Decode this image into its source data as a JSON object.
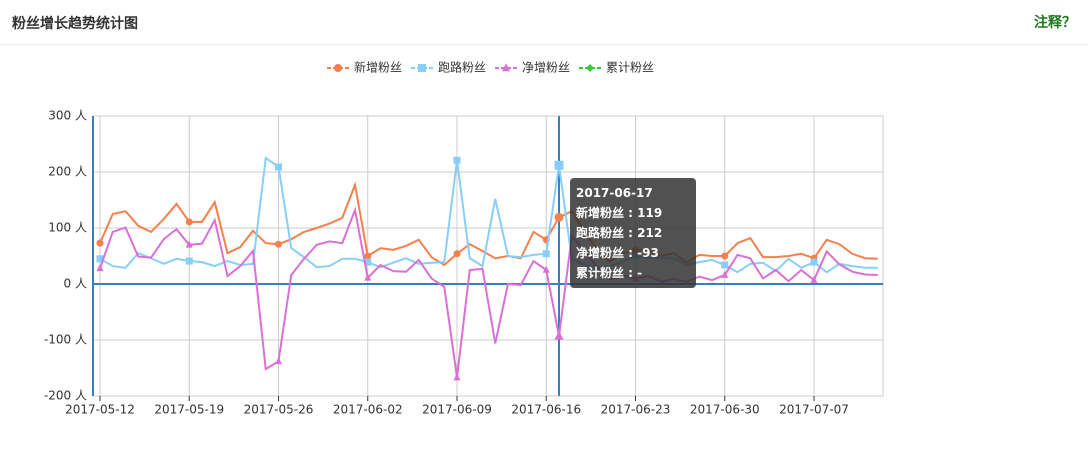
{
  "header": {
    "title": "粉丝增长趋势统计图",
    "note": "注释？"
  },
  "chart_data": {
    "type": "line",
    "categories": [
      "2017-05-12",
      null,
      null,
      null,
      null,
      null,
      null,
      "2017-05-19",
      null,
      null,
      null,
      null,
      null,
      null,
      "2017-05-26",
      null,
      null,
      null,
      null,
      null,
      null,
      "2017-06-02",
      null,
      null,
      null,
      null,
      null,
      null,
      "2017-06-09",
      null,
      null,
      null,
      null,
      null,
      null,
      "2017-06-16",
      null,
      null,
      null,
      null,
      null,
      null,
      "2017-06-23",
      null,
      null,
      null,
      null,
      null,
      null,
      "2017-06-30",
      null,
      null,
      null,
      null,
      null,
      null,
      "2017-07-07",
      null,
      null,
      null,
      null,
      null
    ],
    "series": [
      {
        "name": "新增粉丝",
        "color": "#f5804d",
        "marker": "circle",
        "values": [
          73,
          125,
          130,
          104,
          93,
          116,
          143,
          111,
          111,
          146,
          55,
          66,
          95,
          73,
          71,
          80,
          93,
          100,
          108,
          118,
          177,
          50,
          64,
          61,
          68,
          79,
          48,
          34,
          54,
          71,
          59,
          46,
          50,
          46,
          93,
          79,
          119,
          130,
          95,
          60,
          40,
          55,
          60,
          60,
          50,
          55,
          38,
          52,
          50,
          50,
          73,
          82,
          48,
          48,
          50,
          54,
          46,
          79,
          71,
          54,
          46,
          45
        ]
      },
      {
        "name": "跑路粉丝",
        "color": "#87cefa",
        "marker": "square",
        "values": [
          45,
          32,
          29,
          55,
          46,
          36,
          45,
          41,
          39,
          32,
          41,
          34,
          36,
          225,
          209,
          64,
          48,
          30,
          32,
          45,
          45,
          39,
          30,
          38,
          46,
          36,
          38,
          39,
          221,
          46,
          32,
          152,
          50,
          48,
          52,
          54,
          212,
          45,
          35,
          30,
          32,
          40,
          50,
          46,
          46,
          46,
          34,
          39,
          43,
          34,
          21,
          36,
          38,
          23,
          45,
          29,
          39,
          21,
          36,
          32,
          29,
          29
        ]
      },
      {
        "name": "净增粉丝",
        "color": "#da70d6",
        "marker": "triangle",
        "values": [
          28,
          93,
          101,
          49,
          47,
          80,
          98,
          70,
          72,
          114,
          14,
          32,
          59,
          -152,
          -138,
          16,
          45,
          70,
          76,
          73,
          132,
          11,
          34,
          23,
          22,
          43,
          10,
          -5,
          -167,
          25,
          27,
          -106,
          0,
          -2,
          41,
          25,
          -93,
          85,
          60,
          30,
          8,
          15,
          10,
          14,
          4,
          9,
          4,
          13,
          7,
          16,
          52,
          46,
          10,
          25,
          5,
          25,
          7,
          58,
          35,
          22,
          17,
          16
        ]
      },
      {
        "name": "累计粉丝",
        "color": "#32cd32",
        "marker": "diamond",
        "values": [
          null,
          null,
          null,
          null,
          null,
          null,
          null,
          null,
          null,
          null,
          null,
          null,
          null,
          null,
          null,
          null,
          null,
          null,
          null,
          null,
          null,
          null,
          null,
          null,
          null,
          null,
          null,
          null,
          null,
          null,
          null,
          null,
          null,
          null,
          null,
          null,
          null,
          null,
          null,
          null,
          null,
          null,
          null,
          null,
          null,
          null,
          null,
          null,
          null,
          null,
          null,
          null,
          null,
          null,
          null,
          null,
          null,
          null,
          null,
          null,
          null,
          null
        ]
      }
    ],
    "ylim": [
      -200,
      300
    ],
    "yticks": [
      {
        "value": -200,
        "label": "-200 人"
      },
      {
        "value": -100,
        "label": "-100 人"
      },
      {
        "value": 0,
        "label": "0 人"
      },
      {
        "value": 100,
        "label": "100 人"
      },
      {
        "value": 200,
        "label": "200 人"
      },
      {
        "value": 300,
        "label": "300 人"
      }
    ],
    "grid": true,
    "legend": "top",
    "tooltip": {
      "title": "2017-06-17",
      "rows": [
        "新增粉丝 : 119",
        "跑路粉丝 : 212",
        "净增粉丝 : -93",
        "累计粉丝 : -"
      ]
    }
  }
}
